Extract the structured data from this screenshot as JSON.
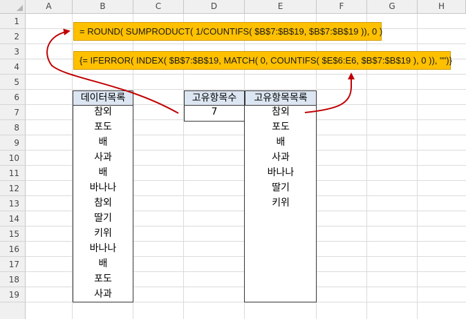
{
  "columns": [
    "A",
    "B",
    "C",
    "D",
    "E",
    "F",
    "G",
    "H"
  ],
  "rows": [
    "1",
    "2",
    "3",
    "4",
    "5",
    "6",
    "7",
    "8",
    "9",
    "10",
    "11",
    "12",
    "13",
    "14",
    "15",
    "16",
    "17",
    "18",
    "19"
  ],
  "formulas": {
    "count_formula": "= ROUND( SUMPRODUCT( 1/COUNTIFS( $B$7:$B$19, $B$7:$B$19 )), 0 )",
    "unique_formula": "{= IFERROR( INDEX( $B$7:$B$19, MATCH( 0, COUNTIFS( $E$6:E6, $B$7:$B$19 ), 0 )), \"\")}"
  },
  "data_list": {
    "header": "데이터목록",
    "items": [
      "참외",
      "포도",
      "배",
      "사과",
      "배",
      "바나나",
      "참외",
      "딸기",
      "키위",
      "바나나",
      "배",
      "포도",
      "사과"
    ]
  },
  "unique_count": {
    "header": "고유항목수",
    "value": "7"
  },
  "unique_list": {
    "header": "고유항목목록",
    "items": [
      "참외",
      "포도",
      "배",
      "사과",
      "바나나",
      "딸기",
      "키위"
    ]
  },
  "colors": {
    "formula_fill": "#ffc000",
    "header_fill": "#dce6f2",
    "arrow": "#c00000"
  }
}
